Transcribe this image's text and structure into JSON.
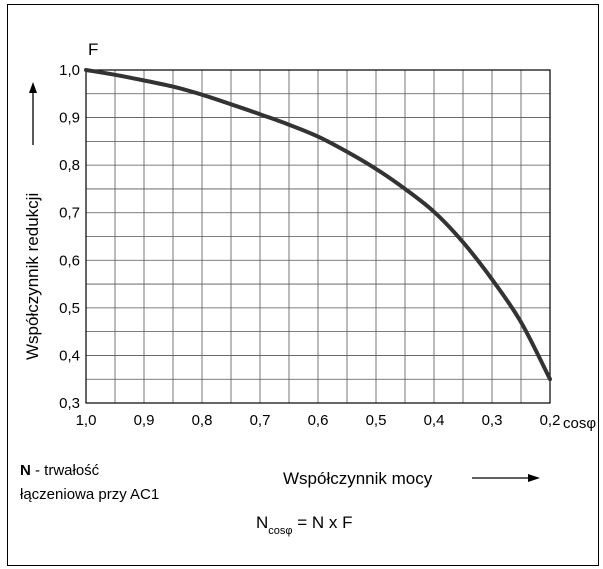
{
  "chart_data": {
    "type": "line",
    "title": "",
    "y_axis_symbol": "F",
    "ylabel": "Współczynnik redukcji",
    "xlabel": "Współczynnik mocy",
    "x_axis_symbol": "cosφ",
    "xlim": [
      1.0,
      0.2
    ],
    "ylim": [
      0.3,
      1.0
    ],
    "x_reversed": true,
    "grid": true,
    "x_ticks": [
      "1,0",
      "0,9",
      "0,8",
      "0,7",
      "0,6",
      "0,5",
      "0,4",
      "0,3",
      "0,2"
    ],
    "y_ticks": [
      "0,3",
      "0,4",
      "0,5",
      "0,6",
      "0,7",
      "0,8",
      "0,9",
      "1,0"
    ],
    "series": [
      {
        "x": [
          1.0,
          0.95,
          0.9,
          0.85,
          0.8,
          0.75,
          0.7,
          0.65,
          0.6,
          0.55,
          0.5,
          0.45,
          0.4,
          0.35,
          0.3,
          0.25,
          0.2
        ],
        "y": [
          1.0,
          0.99,
          0.978,
          0.965,
          0.948,
          0.928,
          0.907,
          0.885,
          0.86,
          0.828,
          0.792,
          0.75,
          0.702,
          0.638,
          0.56,
          0.47,
          0.35
        ]
      }
    ],
    "colors": {
      "line": "#333333",
      "grid": "#555555",
      "axis": "#000000"
    }
  },
  "legend_note": {
    "bold_part": "N",
    "rest_line1": " - trwałość",
    "line2": "łączeniowa przy AC1"
  },
  "formula": {
    "lhs": "N",
    "lhs_subscript": "cosφ",
    "rhs": " = N x F"
  }
}
